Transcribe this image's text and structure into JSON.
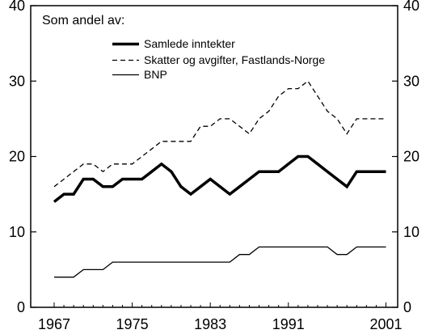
{
  "chart_data": {
    "type": "line",
    "annotation": "Som andel av:",
    "x": [
      1967,
      1968,
      1969,
      1970,
      1971,
      1972,
      1973,
      1974,
      1975,
      1976,
      1977,
      1978,
      1979,
      1980,
      1981,
      1982,
      1983,
      1984,
      1985,
      1986,
      1987,
      1988,
      1989,
      1990,
      1991,
      1992,
      1993,
      1994,
      1995,
      1996,
      1997,
      1998,
      1999,
      2000,
      2001
    ],
    "xticks": [
      1967,
      1975,
      1983,
      1991,
      2001
    ],
    "xlim": [
      1964.6,
      2002.2
    ],
    "ylim": [
      0,
      40
    ],
    "yticks": [
      0,
      10,
      20,
      30,
      40
    ],
    "legend_position": "top-left",
    "series": [
      {
        "name": "Samlede inntekter",
        "style": "solid-thick",
        "values": [
          14,
          15,
          15,
          17,
          17,
          16,
          16,
          17,
          17,
          17,
          18,
          19,
          18,
          16,
          15,
          16,
          17,
          16,
          15,
          16,
          17,
          18,
          18,
          18,
          19,
          20,
          20,
          19,
          18,
          17,
          16,
          18,
          18,
          18,
          18
        ]
      },
      {
        "name": "Skatter og avgifter, Fastlands-Norge",
        "style": "dashed",
        "values": [
          16,
          17,
          18,
          19,
          19,
          18,
          19,
          19,
          19,
          20,
          21,
          22,
          22,
          22,
          22,
          24,
          24,
          25,
          25,
          24,
          23,
          25,
          26,
          28,
          29,
          29,
          30,
          28,
          26,
          25,
          23,
          25,
          25,
          25,
          25
        ]
      },
      {
        "name": "BNP",
        "style": "solid-thin",
        "values": [
          4,
          4,
          4,
          5,
          5,
          5,
          6,
          6,
          6,
          6,
          6,
          6,
          6,
          6,
          6,
          6,
          6,
          6,
          6,
          7,
          7,
          8,
          8,
          8,
          8,
          8,
          8,
          8,
          8,
          7,
          7,
          8,
          8,
          8,
          8
        ]
      }
    ]
  }
}
